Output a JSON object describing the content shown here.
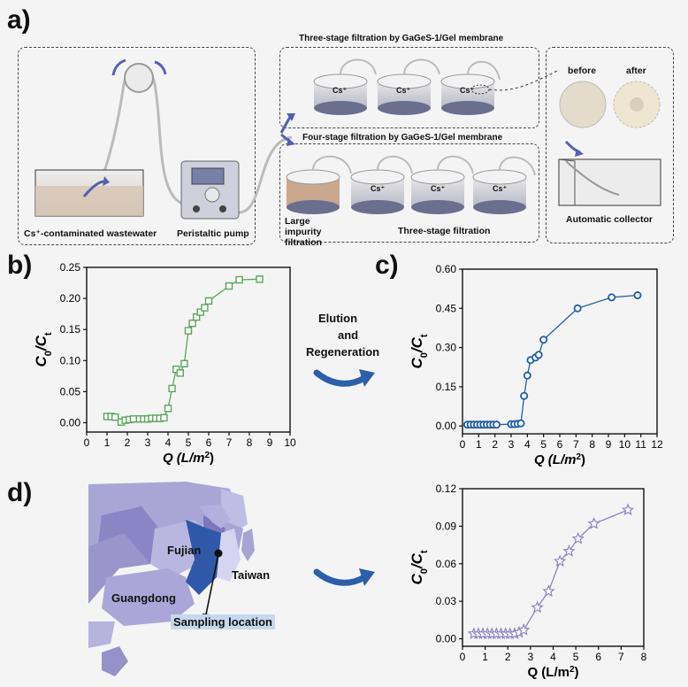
{
  "panels": {
    "a": "a)",
    "b": "b)",
    "c": "c)",
    "d": "d)"
  },
  "panel_a": {
    "wastewater_label": "Cs⁺-contaminated wastewater",
    "pump_label": "Peristaltic pump",
    "three_stage_title": "Three-stage filtration by GaGeS-1/Gel membrane",
    "four_stage_title": "Four-stage filtration by GaGeS-1/Gel membrane",
    "ion": "Cs⁺",
    "large_impurity_label": "Large impurity filtration",
    "three_stage_sub": "Three-stage filtration",
    "before_label": "before",
    "after_label": "after",
    "collector_label": "Automatic collector"
  },
  "elution_text": [
    "Elution",
    "and",
    "Regeneration"
  ],
  "map": {
    "fujian": "Fujian",
    "taiwan": "Taiwan",
    "guangdong": "Guangdong",
    "sampling": "Sampling location"
  },
  "colors": {
    "b": "#5aa55a",
    "c": "#1e5ea6",
    "d": "#8c84c6"
  },
  "chart_data": [
    {
      "id": "b",
      "type": "scatter",
      "marker": "square",
      "connected": true,
      "xlabel": "Q (L/m²)",
      "ylabel": "C0/Ct",
      "xlim": [
        0,
        10
      ],
      "ylim": [
        -0.015,
        0.25
      ],
      "xticks": [
        0,
        1,
        2,
        3,
        4,
        5,
        6,
        7,
        8,
        9,
        10
      ],
      "yticks": [
        0.0,
        0.05,
        0.1,
        0.15,
        0.2,
        0.25
      ],
      "ytick_labels": [
        "0.00",
        "0.05",
        "0.10",
        "0.15",
        "0.20",
        "0.25"
      ],
      "x": [
        1.0,
        1.2,
        1.4,
        1.7,
        1.9,
        2.1,
        2.3,
        2.6,
        2.8,
        3.0,
        3.2,
        3.4,
        3.6,
        3.8,
        4.0,
        4.2,
        4.4,
        4.6,
        4.8,
        5.0,
        5.2,
        5.4,
        5.6,
        5.8,
        6.0,
        7.0,
        7.5,
        8.5
      ],
      "y": [
        0.01,
        0.01,
        0.009,
        0.001,
        0.004,
        0.005,
        0.006,
        0.006,
        0.006,
        0.006,
        0.007,
        0.007,
        0.007,
        0.008,
        0.023,
        0.055,
        0.086,
        0.08,
        0.095,
        0.148,
        0.16,
        0.17,
        0.178,
        0.185,
        0.196,
        0.22,
        0.23,
        0.231
      ]
    },
    {
      "id": "c",
      "type": "scatter",
      "marker": "circle",
      "connected": true,
      "xlabel": "Q (L/m²)",
      "ylabel": "C0/Ct",
      "xlim": [
        0,
        12
      ],
      "ylim": [
        -0.03,
        0.6
      ],
      "xticks": [
        0,
        1,
        2,
        3,
        4,
        5,
        6,
        7,
        8,
        9,
        10,
        11,
        12
      ],
      "yticks": [
        0.0,
        0.15,
        0.3,
        0.45,
        0.6
      ],
      "ytick_labels": [
        "0.00",
        "0.15",
        "0.30",
        "0.45",
        "0.60"
      ],
      "x": [
        0.3,
        0.5,
        0.7,
        0.9,
        1.1,
        1.3,
        1.5,
        1.7,
        1.9,
        2.1,
        3.0,
        3.2,
        3.4,
        3.6,
        3.8,
        4.0,
        4.2,
        4.5,
        4.7,
        5.0,
        7.1,
        9.2,
        10.8
      ],
      "y": [
        0.005,
        0.005,
        0.005,
        0.005,
        0.005,
        0.005,
        0.005,
        0.005,
        0.005,
        0.005,
        0.007,
        0.007,
        0.008,
        0.01,
        0.115,
        0.193,
        0.252,
        0.262,
        0.272,
        0.33,
        0.45,
        0.492,
        0.5
      ]
    },
    {
      "id": "d",
      "type": "scatter",
      "marker": "star",
      "connected": true,
      "xlabel": "Q (L/m²)",
      "ylabel": "C0/Ct",
      "xlim": [
        0,
        8
      ],
      "ylim": [
        -0.006,
        0.12
      ],
      "xticks": [
        0,
        1,
        2,
        3,
        4,
        5,
        6,
        7,
        8
      ],
      "yticks": [
        0.0,
        0.03,
        0.06,
        0.09,
        0.12
      ],
      "ytick_labels": [
        "0.00",
        "0.03",
        "0.06",
        "0.09",
        "0.12"
      ],
      "x": [
        0.5,
        0.7,
        0.9,
        1.1,
        1.3,
        1.5,
        1.7,
        1.9,
        2.1,
        2.3,
        2.5,
        2.7,
        3.3,
        3.8,
        4.3,
        4.7,
        5.1,
        5.8,
        7.3
      ],
      "y": [
        0.004,
        0.004,
        0.004,
        0.004,
        0.004,
        0.004,
        0.004,
        0.004,
        0.004,
        0.004,
        0.005,
        0.007,
        0.025,
        0.038,
        0.062,
        0.07,
        0.08,
        0.092,
        0.103
      ]
    }
  ]
}
